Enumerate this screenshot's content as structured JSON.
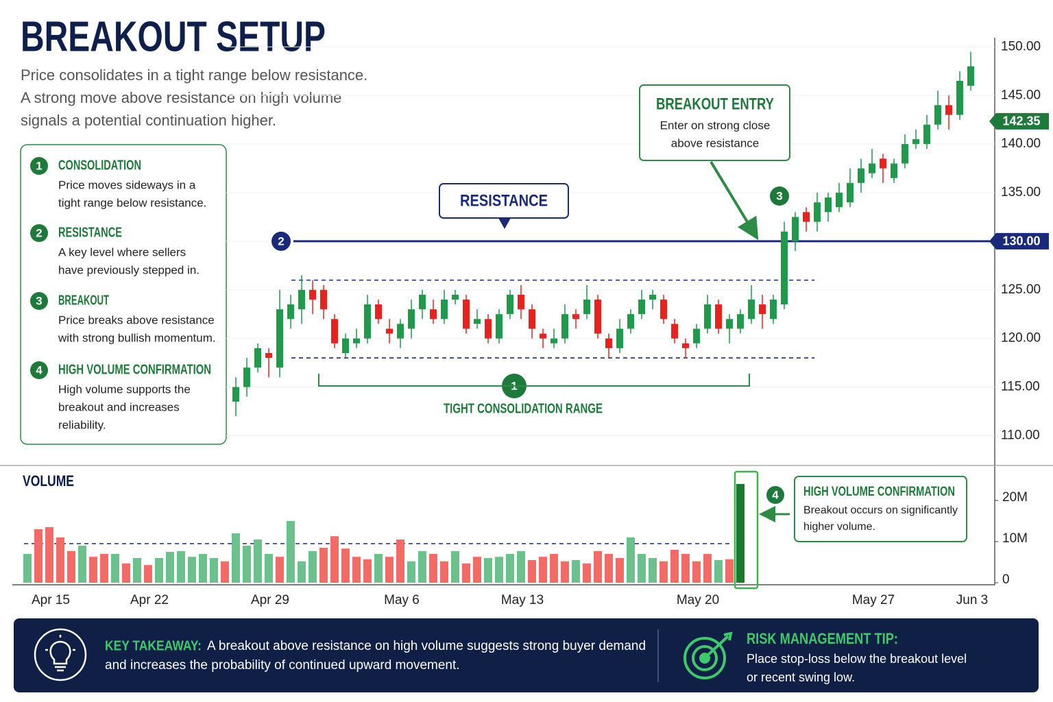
{
  "header": {
    "title": "BREAKOUT SETUP",
    "subtitle": [
      "Price consolidates in a tight range below resistance.",
      "A strong move above resistance on high volume",
      "signals a potential continuation higher."
    ]
  },
  "steps": [
    {
      "number": 1,
      "title": "CONSOLIDATION",
      "text": [
        "Price moves sideways in a",
        "tight range below resistance."
      ]
    },
    {
      "number": 2,
      "title": "RESISTANCE",
      "text": [
        "A key level where sellers",
        "have previously stepped in."
      ]
    },
    {
      "number": 3,
      "title": "BREAKOUT",
      "text": [
        "Price breaks above resistance",
        "with strong bullish momentum."
      ]
    },
    {
      "number": 4,
      "title": "HIGH VOLUME CONFIRMATION",
      "text": [
        "High volume supports the",
        "breakout and increases",
        "reliability."
      ]
    }
  ],
  "chart_data": {
    "type": "candlestick",
    "categories": [
      null,
      null,
      "Apr 15",
      null,
      null,
      null,
      null,
      null,
      null,
      null,
      null,
      "Apr 22",
      null,
      null,
      null,
      null,
      null,
      null,
      null,
      null,
      null,
      null,
      "Apr 29",
      null,
      null,
      null,
      null,
      null,
      null,
      null,
      null,
      null,
      null,
      null,
      "May 6",
      null,
      null,
      null,
      null,
      null,
      null,
      null,
      null,
      null,
      null,
      "May 13",
      null,
      null,
      null,
      null,
      null,
      null,
      null,
      null,
      null,
      null,
      null,
      null,
      null,
      null,
      null,
      "May 20",
      null,
      null,
      null,
      null,
      null,
      null,
      null,
      null,
      null,
      null,
      null,
      null,
      null,
      null,
      null,
      "May 27",
      null,
      null,
      null,
      null,
      null,
      null,
      null,
      null,
      "Jun 3"
    ],
    "open": [
      null,
      null,
      null,
      null,
      null,
      null,
      null,
      null,
      null,
      null,
      null,
      null,
      null,
      null,
      null,
      null,
      null,
      null,
      null,
      113.5,
      115,
      117,
      118.5,
      117,
      122,
      123,
      125,
      125,
      122,
      118.5,
      119.5,
      120,
      123.5,
      121,
      120,
      121,
      123,
      123,
      122,
      124,
      124,
      121.5,
      122,
      120,
      122.5,
      124.5,
      123,
      120.5,
      119.5,
      120,
      122.5,
      122.5,
      124,
      120,
      119,
      121,
      122.5,
      124,
      124,
      121.5,
      119.5,
      119.5,
      121,
      123.5,
      121,
      121,
      122,
      123.5,
      122,
      123.5,
      130,
      133,
      132,
      133,
      133.5,
      134,
      136,
      137,
      138.5,
      136.5,
      138,
      140,
      140,
      142,
      144,
      143,
      146
    ],
    "high": [
      null,
      null,
      null,
      null,
      null,
      null,
      null,
      null,
      null,
      null,
      null,
      null,
      null,
      null,
      null,
      null,
      null,
      null,
      null,
      116,
      118,
      119.5,
      119,
      125,
      124.5,
      126.5,
      126,
      125.5,
      122.5,
      120.5,
      121,
      124.5,
      124,
      122,
      122,
      124,
      125,
      124,
      125,
      125,
      124.5,
      123,
      122.5,
      123,
      125,
      125.5,
      123.5,
      121,
      121,
      123.5,
      123,
      125.5,
      124.5,
      120.5,
      122,
      123,
      125,
      125,
      124.5,
      122,
      120,
      121.5,
      124.5,
      124,
      122.5,
      123,
      125.5,
      124.5,
      124.5,
      132,
      133,
      133.5,
      135,
      135,
      136,
      137.5,
      138.5,
      139.5,
      139,
      138.5,
      141,
      141.5,
      143,
      145.5,
      145,
      147.5,
      149.5
    ],
    "low": [
      null,
      null,
      null,
      null,
      null,
      null,
      null,
      null,
      null,
      null,
      null,
      null,
      null,
      null,
      null,
      null,
      null,
      null,
      null,
      112,
      114,
      116.5,
      116,
      116,
      121,
      121.5,
      122.5,
      122,
      119,
      118,
      119,
      119.5,
      121.5,
      119.5,
      119,
      120,
      122,
      121.5,
      121.5,
      123.5,
      120.5,
      121,
      119.5,
      119.5,
      122,
      122,
      120,
      119,
      119,
      119.5,
      121,
      122,
      120,
      118,
      118.5,
      120.5,
      122,
      123,
      121.5,
      119.5,
      118,
      119,
      120.5,
      120.5,
      119.5,
      120.5,
      121.5,
      121,
      121.5,
      123,
      129,
      131,
      131,
      132,
      133,
      133.5,
      135,
      136.5,
      136,
      136,
      137.5,
      139.5,
      139.5,
      141.5,
      141.5,
      142.5,
      145.5
    ],
    "close": [
      null,
      null,
      null,
      null,
      null,
      null,
      null,
      null,
      null,
      null,
      null,
      null,
      null,
      null,
      null,
      null,
      null,
      null,
      null,
      115,
      117,
      119,
      118,
      123,
      123.5,
      125,
      124,
      123,
      119.5,
      120,
      120,
      123.5,
      122,
      120.5,
      121.5,
      123,
      124.5,
      122,
      124,
      124.5,
      121,
      122,
      120,
      122.5,
      124.5,
      123,
      121,
      120,
      120,
      122.5,
      122,
      124,
      120.5,
      119,
      121,
      122.5,
      124,
      124.5,
      122,
      120,
      119,
      121,
      123.5,
      121,
      122,
      122.5,
      124,
      122.5,
      124,
      131,
      132.5,
      132,
      134,
      134.5,
      135,
      136,
      137.5,
      138,
      137.5,
      138,
      140,
      140.5,
      142,
      144,
      143,
      146.5,
      148
    ],
    "up_color": "#1f9a4a",
    "down_color": "#e8221f",
    "ylim": [
      107,
      152
    ],
    "yticks": [
      {
        "value": 110,
        "label": "110.00"
      },
      {
        "value": 115,
        "label": "115.00"
      },
      {
        "value": 120,
        "label": "120.00"
      },
      {
        "value": 125,
        "label": "125.00"
      },
      {
        "value": 130,
        "label": "130.00"
      },
      {
        "value": 135,
        "label": "135.00"
      },
      {
        "value": 140,
        "label": "140.00"
      },
      {
        "value": 145,
        "label": "145.00"
      },
      {
        "value": 150,
        "label": "150.00"
      }
    ],
    "grid": true,
    "resistance": {
      "value": 130,
      "label": "130.00"
    },
    "range_high": 126,
    "range_low": 118,
    "current_price": 142.35,
    "volume": {
      "title": "VOLUME",
      "values": [
        7000000,
        13000000,
        13500000,
        11000000,
        7700000,
        9000000,
        6300000,
        7000000,
        7000000,
        4700000,
        6000000,
        4300000,
        6000000,
        7500000,
        7700000,
        6300000,
        7000000,
        6000000,
        5200000,
        12000000,
        9000000,
        10500000,
        7000000,
        6300000,
        15000000,
        5200000,
        7700000,
        8500000,
        11300000,
        8300000,
        6300000,
        5700000,
        7000000,
        6300000,
        10500000,
        5200000,
        7700000,
        7000000,
        5200000,
        7700000,
        4700000,
        6300000,
        6000000,
        6300000,
        7000000,
        7700000,
        5500000,
        6300000,
        7000000,
        5200000,
        5500000,
        4700000,
        7700000,
        7000000,
        6000000,
        11000000,
        7000000,
        6000000,
        5200000,
        8000000,
        7000000,
        5200000,
        7000000,
        5500000,
        5700000,
        24000000,
        null,
        null,
        null,
        null,
        null,
        null,
        null,
        null,
        null,
        null,
        null,
        null,
        null,
        null,
        null,
        null,
        null,
        null,
        null,
        null,
        null
      ],
      "colors": [
        "#6cc18c",
        "#f36b67",
        "#f36b67",
        "#f36b67",
        "#f36b67",
        "#6cc18c",
        "#f36b67",
        "#f36b67",
        "#6cc18c",
        "#f36b67",
        "#6cc18c",
        "#f36b67",
        "#6cc18c",
        "#6cc18c",
        "#6cc18c",
        "#6cc18c",
        "#6cc18c",
        "#6cc18c",
        "#f36b67",
        "#6cc18c",
        "#6cc18c",
        "#6cc18c",
        "#6cc18c",
        "#f36b67",
        "#6cc18c",
        "#6cc18c",
        "#6cc18c",
        "#f36b67",
        "#f36b67",
        "#f36b67",
        "#f36b67",
        "#f36b67",
        "#6cc18c",
        "#f36b67",
        "#f36b67",
        "#6cc18c",
        "#6cc18c",
        "#f36b67",
        "#f36b67",
        "#6cc18c",
        "#f36b67",
        "#f36b67",
        "#6cc18c",
        "#6cc18c",
        "#6cc18c",
        "#6cc18c",
        "#f36b67",
        "#f36b67",
        "#f36b67",
        "#f36b67",
        "#6cc18c",
        "#f36b67",
        "#f36b67",
        "#f36b67",
        "#f36b67",
        "#6cc18c",
        "#6cc18c",
        "#6cc18c",
        "#f36b67",
        "#f36b67",
        "#f36b67",
        "#f36b67",
        "#f36b67",
        "#6cc18c",
        "#f36b67",
        "#1b7a2e",
        null,
        null,
        null,
        null,
        null,
        null,
        null,
        null,
        null,
        null,
        null,
        null,
        null,
        null,
        null,
        null,
        null,
        null,
        null,
        null,
        null
      ],
      "ylim": [
        0,
        25000000
      ],
      "yticks": [
        0,
        {
          "value": 10000000,
          "label": "10M"
        },
        {
          "value": 20000000,
          "label": "20M"
        }
      ],
      "average": 9500000
    },
    "annotations": {
      "resistance": "RESISTANCE",
      "breakout_title": "BREAKOUT ENTRY",
      "breakout_text": [
        "Enter on strong close",
        "above resistance"
      ],
      "range": "TIGHT CONSOLIDATION RANGE",
      "volume_title": "HIGH VOLUME CONFIRMATION",
      "volume_text": [
        "Breakout occurs on significantly",
        "higher volume."
      ]
    }
  },
  "footer": {
    "takeaway_label": "KEY TAKEAWAY:",
    "takeaway_text": [
      "A breakout above resistance on high volume suggests strong buyer demand",
      "and increases the probability of continued upward movement."
    ],
    "tip_title": "RISK MANAGEMENT TIP:",
    "tip_text": [
      "Place stop-loss below the breakout level",
      "or recent swing low."
    ]
  }
}
